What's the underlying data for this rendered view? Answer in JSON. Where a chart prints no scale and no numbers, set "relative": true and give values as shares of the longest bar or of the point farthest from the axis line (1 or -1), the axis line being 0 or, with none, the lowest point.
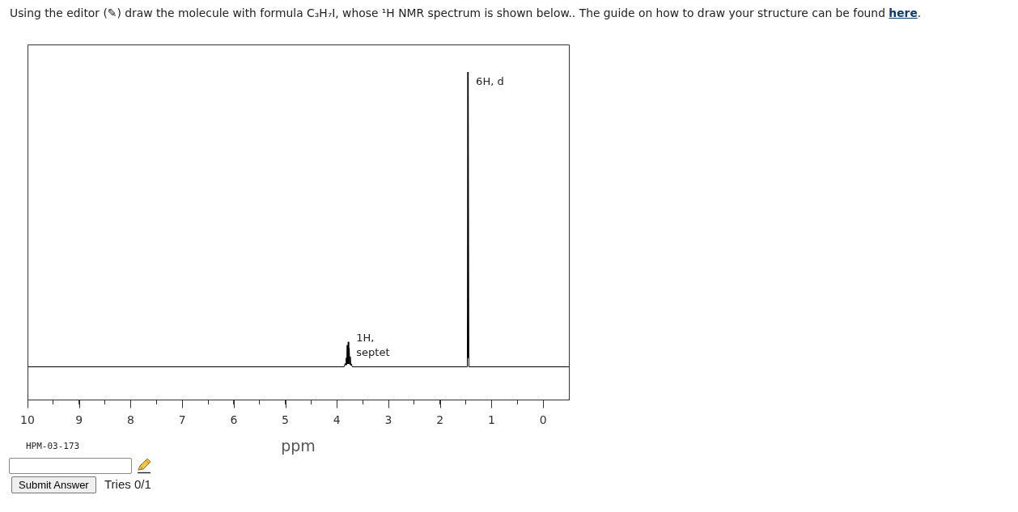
{
  "chart_data": {
    "type": "line",
    "title": "Using the editor (✎) draw the molecule with formula C₃H₇I, whose ¹H NMR spectrum is shown below.. The guide on how to draw your structure can be found here.",
    "xlabel": "ppm",
    "relative": true,
    "color": "#000000",
    "x": [
      10,
      3.86,
      3.84,
      3.83,
      3.82,
      3.81,
      3.8,
      3.79,
      3.78,
      3.77,
      3.76,
      3.75,
      3.74,
      3.73,
      3.72,
      3.7,
      1.47,
      1.46,
      1.455,
      1.45,
      1.44,
      -0.5
    ],
    "values": [
      0.1,
      0.1,
      0.11,
      0.105,
      0.127,
      0.107,
      0.166,
      0.109,
      0.176,
      0.109,
      0.157,
      0.107,
      0.131,
      0.105,
      0.109,
      0.1,
      0.1,
      1,
      0.127,
      0.943,
      0.1,
      0.1
    ],
    "xlim": [
      10,
      -0.5
    ],
    "xticks": [
      10,
      {
        "value": 9.5,
        "label": null
      },
      9,
      {
        "value": 8.5,
        "label": null
      },
      8,
      {
        "value": 7.5,
        "label": null
      },
      7,
      {
        "value": 6.5,
        "label": null
      },
      6,
      {
        "value": 5.5,
        "label": null
      },
      5,
      {
        "value": 4.5,
        "label": null
      },
      4,
      {
        "value": 3.5,
        "label": null
      },
      3,
      {
        "value": 2.5,
        "label": null
      },
      2,
      {
        "value": 1.5,
        "label": null
      },
      1,
      {
        "value": 0.5,
        "label": null
      },
      0
    ],
    "annotations": [
      {
        "text": "6H, d",
        "x": 1.46,
        "y": 0.97
      },
      {
        "text": "1H,\nseptet",
        "x": 3.78,
        "y": 0.163
      },
      "HPM-03-173",
      "Submit Answer",
      "Tries 0/1"
    ]
  }
}
